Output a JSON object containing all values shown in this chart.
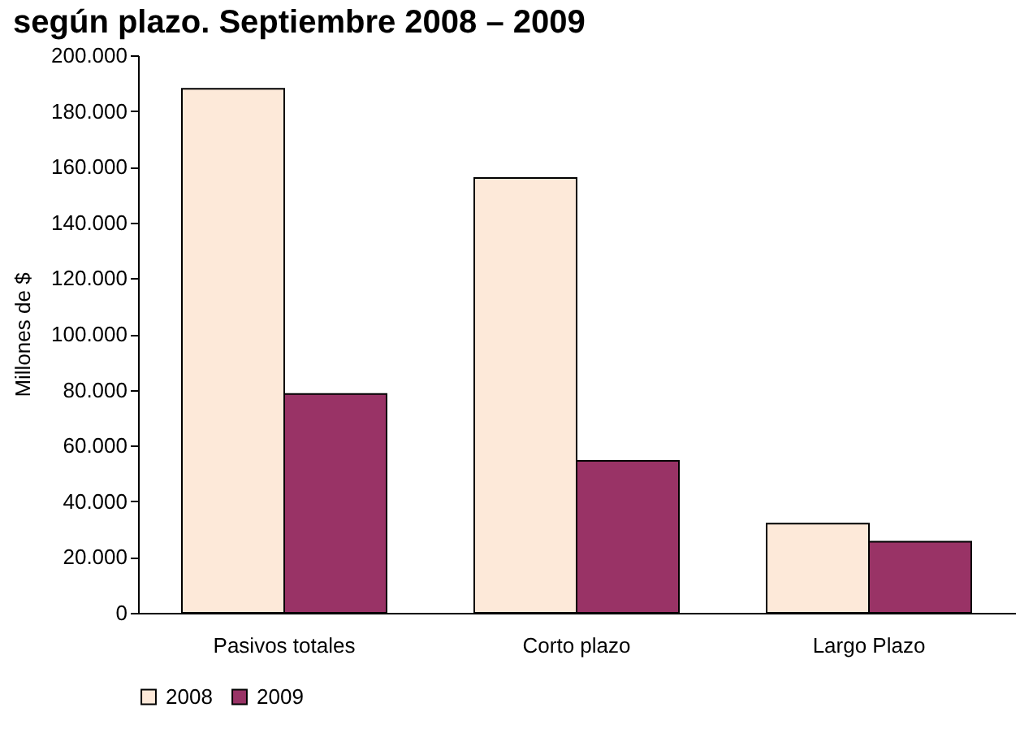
{
  "chart_data": {
    "type": "bar",
    "title": "según plazo. Septiembre 2008 – 2009",
    "ylabel": "Millones de $",
    "categories": [
      "Pasivos totales",
      "Corto plazo",
      "Largo Plazo"
    ],
    "series": [
      {
        "name": "2008",
        "color": "#fde9d9",
        "values": [
          188000,
          156000,
          32000
        ]
      },
      {
        "name": "2009",
        "color": "#993366",
        "values": [
          78500,
          54500,
          25500
        ]
      }
    ],
    "ylim": [
      0,
      200000
    ],
    "yticks": [
      {
        "value": 0,
        "label": "0"
      },
      {
        "value": 20000,
        "label": "20.000"
      },
      {
        "value": 40000,
        "label": "40.000"
      },
      {
        "value": 60000,
        "label": "60.000"
      },
      {
        "value": 80000,
        "label": "80.000"
      },
      {
        "value": 100000,
        "label": "100.000"
      },
      {
        "value": 120000,
        "label": "120.000"
      },
      {
        "value": 140000,
        "label": "140.000"
      },
      {
        "value": 160000,
        "label": "160.000"
      },
      {
        "value": 180000,
        "label": "180.000"
      },
      {
        "value": 200000,
        "label": "200.000"
      }
    ],
    "grid": false,
    "legend": "bottom"
  }
}
